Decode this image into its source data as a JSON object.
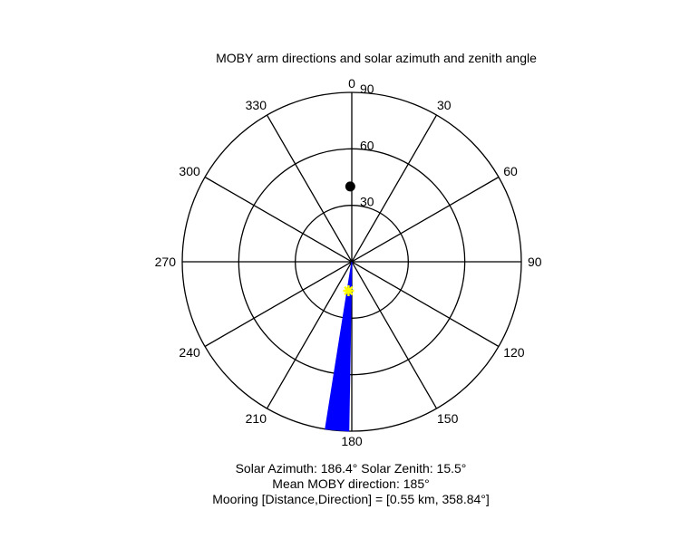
{
  "chart_data": {
    "type": "polar",
    "title": "MOBY arm directions and solar azimuth and zenith angle",
    "angle_ticks": [
      "0",
      "30",
      "60",
      "90",
      "120",
      "150",
      "180",
      "210",
      "240",
      "270",
      "300",
      "330"
    ],
    "radial_ticks": [
      "30",
      "60",
      "90"
    ],
    "radial_max": 90,
    "series": [
      {
        "kind": "wedge",
        "color": "#0000ff",
        "theta_start": 181,
        "theta_end": 189,
        "r_inner": 0,
        "r_outer": 90
      },
      {
        "kind": "marker",
        "marker": "star",
        "color": "#ffff00",
        "theta": 186.4,
        "r": 15.5
      },
      {
        "kind": "marker",
        "marker": "dot",
        "color": "#000000",
        "theta": 358.84,
        "r": 40
      }
    ]
  },
  "annotations": {
    "line1": "Solar Azimuth: 186.4°   Solar Zenith: 15.5°",
    "line2": "Mean MOBY direction: 185°",
    "line3": "Mooring [Distance,Direction] = [0.55 km, 358.84°]"
  }
}
